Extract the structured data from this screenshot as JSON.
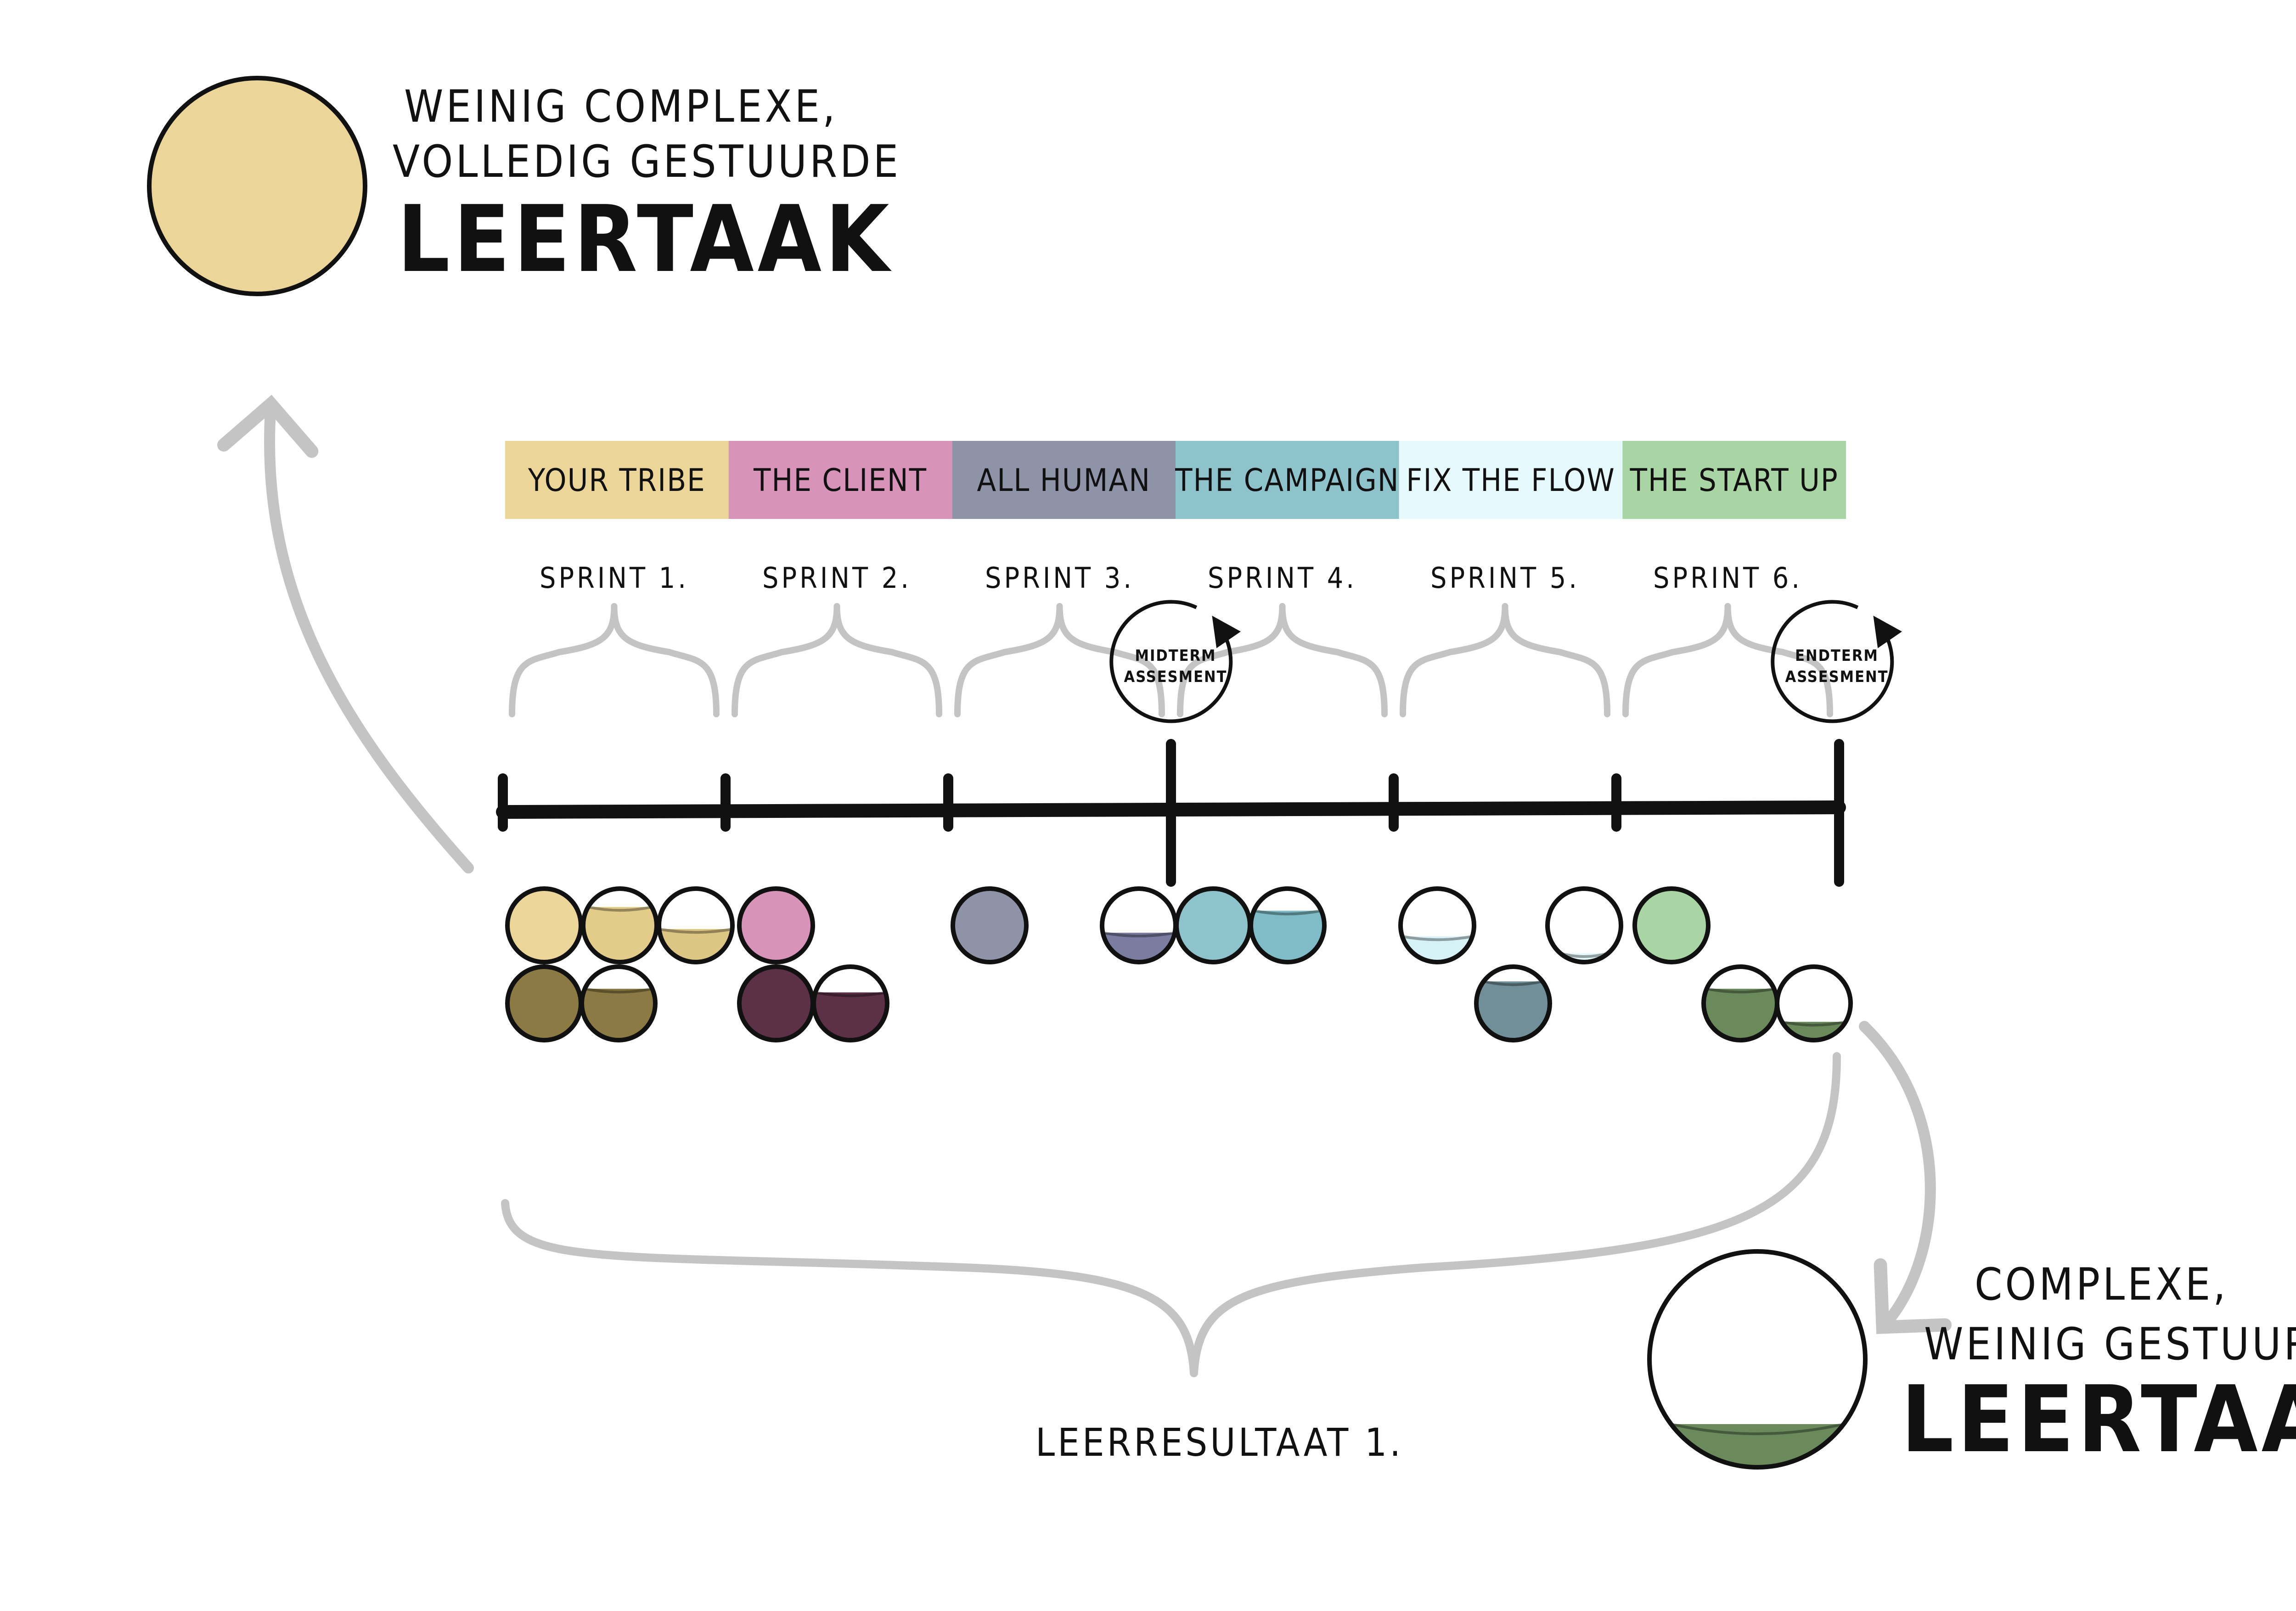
{
  "top_card": {
    "line1": "WEINIG COMPLEXE,",
    "line2": "VOLLEDIG GESTUURDE",
    "title": "LEERTAAK",
    "fill_color": "#ecd598",
    "fill_level": 1.0
  },
  "bottom_card": {
    "line1": "COMPLEXE,",
    "line2": "WEINIG GESTUURDE",
    "title": "LEERTAAK",
    "fill_color": "#6a8a5c",
    "fill_level": 0.2
  },
  "projects": [
    {
      "label": "YOUR TRIBE",
      "color": "#ecd598"
    },
    {
      "label": "THE CLIENT",
      "color": "#d893b9"
    },
    {
      "label": "ALL HUMAN",
      "color": "#8f93a7"
    },
    {
      "label": "THE CAMPAIGN",
      "color": "#8fc3cb"
    },
    {
      "label": "FIX THE FLOW",
      "color": "#e6fafd"
    },
    {
      "label": "THE START UP",
      "color": "#a9d4a4"
    }
  ],
  "sprints": [
    "SPRINT 1.",
    "SPRINT 2.",
    "SPRINT 3.",
    "SPRINT 4.",
    "SPRINT 5.",
    "SPRINT 6."
  ],
  "assessments": [
    {
      "line1": "MIDTERM",
      "line2": "ASSESMENT"
    },
    {
      "line1": "ENDTERM",
      "line2": "ASSESMENT"
    }
  ],
  "result_label": "LEERRESULTAAT 1.",
  "circles": [
    {
      "sprint": 1,
      "row": 1,
      "color": "#ecd598",
      "fill": 1.0
    },
    {
      "sprint": 1,
      "row": 1,
      "color": "#e3cc8a",
      "fill": 0.75
    },
    {
      "sprint": 1,
      "row": 1,
      "color": "#ddc684",
      "fill": 0.45
    },
    {
      "sprint": 1,
      "row": 2,
      "color": "#8c7a44",
      "fill": 1.0
    },
    {
      "sprint": 1,
      "row": 2,
      "color": "#8c7a44",
      "fill": 0.7
    },
    {
      "sprint": 2,
      "row": 1,
      "color": "#d893b9",
      "fill": 1.0
    },
    {
      "sprint": 2,
      "row": 2,
      "color": "#5c3148",
      "fill": 1.0
    },
    {
      "sprint": 2,
      "row": 2,
      "color": "#5c3148",
      "fill": 0.65
    },
    {
      "sprint": 3,
      "row": 1,
      "color": "#8f93a7",
      "fill": 1.0
    },
    {
      "sprint": 4,
      "row": 1,
      "color": "#7a7da0",
      "fill": 0.4
    },
    {
      "sprint": 4,
      "row": 1,
      "color": "#8fc3cb",
      "fill": 1.0
    },
    {
      "sprint": 4,
      "row": 1,
      "color": "#7fbcc7",
      "fill": 0.7
    },
    {
      "sprint": 5,
      "row": 1,
      "color": "#d6f2f7",
      "fill": 0.35
    },
    {
      "sprint": 5,
      "row": 2,
      "color": "#708f99",
      "fill": 0.8
    },
    {
      "sprint": 5,
      "row": 1,
      "color": "#e4f7fa",
      "fill": 0.12
    },
    {
      "sprint": 6,
      "row": 1,
      "color": "#a9d4a4",
      "fill": 1.0
    },
    {
      "sprint": 6,
      "row": 2,
      "color": "#6a8a5c",
      "fill": 0.7
    },
    {
      "sprint": 6,
      "row": 2,
      "color": "#6a8a5c",
      "fill": 0.25
    }
  ]
}
